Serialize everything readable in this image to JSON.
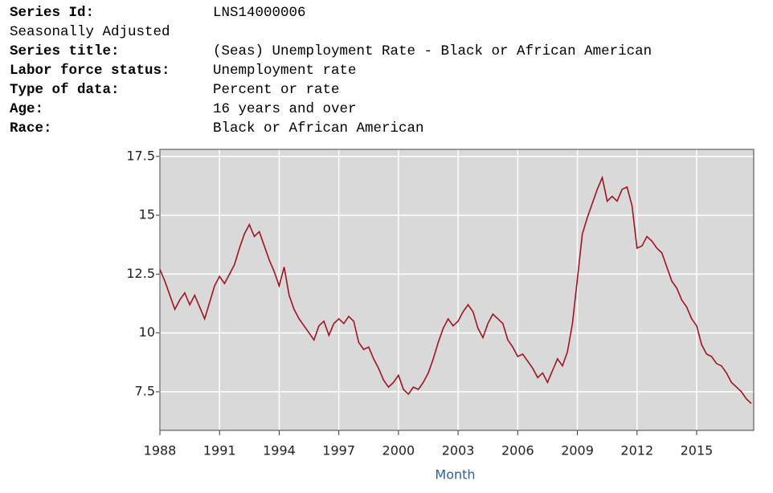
{
  "header": {
    "info": [
      {
        "label": "Series Id:",
        "value": "LNS14000006"
      },
      {
        "note": "Seasonally Adjusted"
      },
      {
        "label": "Series title:",
        "value": "(Seas) Unemployment Rate - Black or African American"
      },
      {
        "label": "Labor force status:",
        "value": "Unemployment rate"
      },
      {
        "label": "Type of data:",
        "value": "Percent or rate"
      },
      {
        "label": "Age:",
        "value": "16 years and over"
      },
      {
        "label": "Race:",
        "value": "Black or African American"
      }
    ]
  },
  "chart_data": {
    "type": "line",
    "x_label": "Month",
    "grid": true,
    "color": "#a0141e",
    "background": "#d9d9d9",
    "xlim": [
      1988,
      2017.87
    ],
    "xticks": [
      1988,
      1991,
      1994,
      1997,
      2000,
      2003,
      2006,
      2009,
      2012,
      2015
    ],
    "ylim": [
      5.86,
      17.8
    ],
    "yticks": [
      7.5,
      10,
      12.5,
      15,
      17.5
    ],
    "x": [
      1988,
      1988.25,
      1988.5,
      1988.75,
      1989,
      1989.25,
      1989.5,
      1989.75,
      1990,
      1990.25,
      1990.5,
      1990.75,
      1991,
      1991.25,
      1991.5,
      1991.75,
      1992,
      1992.25,
      1992.5,
      1992.75,
      1993,
      1993.25,
      1993.5,
      1993.75,
      1994,
      1994.25,
      1994.5,
      1994.75,
      1995,
      1995.25,
      1995.5,
      1995.75,
      1996,
      1996.25,
      1996.5,
      1996.75,
      1997,
      1997.25,
      1997.5,
      1997.75,
      1998,
      1998.25,
      1998.5,
      1998.75,
      1999,
      1999.25,
      1999.5,
      1999.75,
      2000,
      2000.25,
      2000.5,
      2000.75,
      2001,
      2001.25,
      2001.5,
      2001.75,
      2002,
      2002.25,
      2002.5,
      2002.75,
      2003,
      2003.25,
      2003.5,
      2003.75,
      2004,
      2004.25,
      2004.5,
      2004.75,
      2005,
      2005.25,
      2005.5,
      2005.75,
      2006,
      2006.25,
      2006.5,
      2006.75,
      2007,
      2007.25,
      2007.5,
      2007.75,
      2008,
      2008.25,
      2008.5,
      2008.75,
      2009,
      2009.25,
      2009.5,
      2009.75,
      2010,
      2010.25,
      2010.5,
      2010.75,
      2011,
      2011.25,
      2011.5,
      2011.75,
      2012,
      2012.25,
      2012.5,
      2012.75,
      2013,
      2013.25,
      2013.5,
      2013.75,
      2014,
      2014.25,
      2014.5,
      2014.75,
      2015,
      2015.25,
      2015.5,
      2015.75,
      2016,
      2016.25,
      2016.5,
      2016.75,
      2017,
      2017.25,
      2017.5,
      2017.75
    ],
    "values": [
      12.7,
      12.2,
      11.6,
      11.0,
      11.4,
      11.7,
      11.2,
      11.6,
      11.1,
      10.6,
      11.3,
      12.0,
      12.4,
      12.1,
      12.5,
      12.9,
      13.6,
      14.2,
      14.6,
      14.1,
      14.3,
      13.7,
      13.1,
      12.6,
      12.0,
      12.8,
      11.6,
      11.0,
      10.6,
      10.3,
      10.0,
      9.7,
      10.3,
      10.5,
      9.9,
      10.4,
      10.6,
      10.4,
      10.7,
      10.5,
      9.6,
      9.3,
      9.4,
      8.9,
      8.5,
      8.0,
      7.7,
      7.9,
      8.2,
      7.6,
      7.4,
      7.7,
      7.6,
      7.9,
      8.3,
      8.9,
      9.6,
      10.2,
      10.6,
      10.3,
      10.5,
      10.9,
      11.2,
      10.9,
      10.2,
      9.8,
      10.4,
      10.8,
      10.6,
      10.4,
      9.7,
      9.4,
      9.0,
      9.1,
      8.8,
      8.5,
      8.1,
      8.3,
      7.9,
      8.4,
      8.9,
      8.6,
      9.2,
      10.4,
      12.3,
      14.2,
      14.9,
      15.5,
      16.1,
      16.6,
      15.6,
      15.8,
      15.6,
      16.1,
      16.2,
      15.4,
      13.6,
      13.7,
      14.1,
      13.9,
      13.6,
      13.4,
      12.8,
      12.2,
      11.9,
      11.4,
      11.1,
      10.6,
      10.3,
      9.5,
      9.1,
      9.0,
      8.7,
      8.6,
      8.3,
      7.9,
      7.7,
      7.5,
      7.2,
      7.0
    ]
  }
}
